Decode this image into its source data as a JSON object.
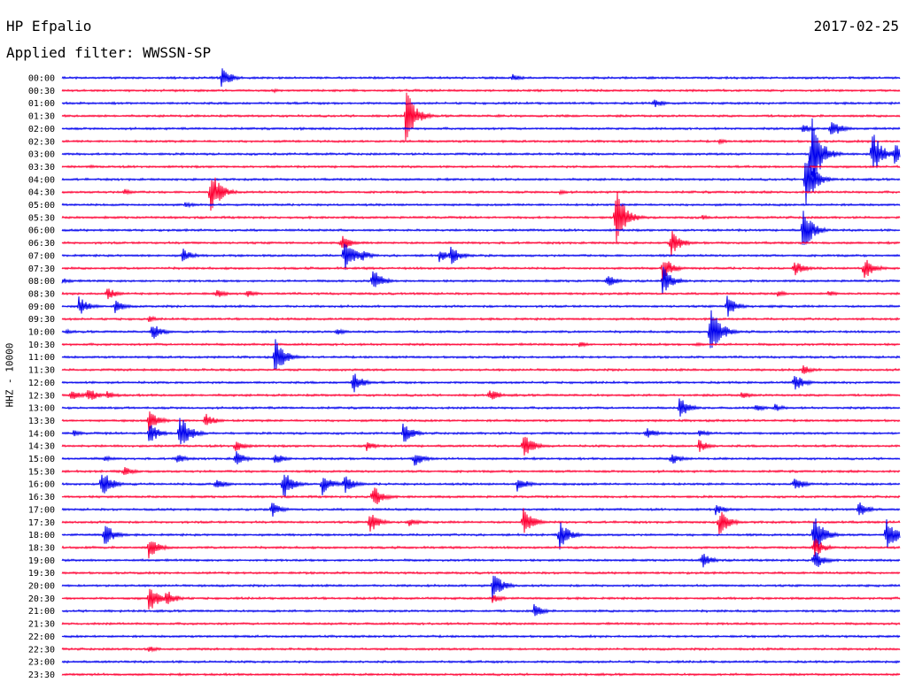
{
  "header": {
    "station": "HP Efpalio",
    "date": "2017-02-25",
    "filter": "Applied filter: WWSSN-SP",
    "ylabel": "HHZ - 10000"
  },
  "colors": {
    "even_rows": "#0000ee",
    "odd_rows": "#ff0033"
  },
  "chart_data": {
    "type": "line",
    "title": "HP Efpalio",
    "ylabel": "HHZ - 10000",
    "row_labels": [
      "00:00",
      "00:30",
      "01:00",
      "01:30",
      "02:00",
      "02:30",
      "03:00",
      "03:30",
      "04:00",
      "04:30",
      "05:00",
      "05:30",
      "06:00",
      "06:30",
      "07:00",
      "07:30",
      "08:00",
      "08:30",
      "09:00",
      "09:30",
      "10:00",
      "10:30",
      "11:00",
      "11:30",
      "12:00",
      "12:30",
      "13:00",
      "13:30",
      "14:00",
      "14:30",
      "15:00",
      "15:30",
      "16:00",
      "16:30",
      "17:00",
      "17:30",
      "18:00",
      "18:30",
      "19:00",
      "19:30",
      "20:00",
      "20:30",
      "21:00",
      "21:30",
      "22:00",
      "22:30",
      "23:00",
      "23:30"
    ],
    "row_duration_minutes": 30,
    "events": [
      {
        "row": 0,
        "minute": 5.7,
        "amp": 14
      },
      {
        "row": 0,
        "minute": 16.1,
        "amp": 5
      },
      {
        "row": 1,
        "minute": 7.6,
        "amp": 2
      },
      {
        "row": 2,
        "minute": 21.2,
        "amp": 6
      },
      {
        "row": 3,
        "minute": 12.3,
        "amp": 34
      },
      {
        "row": 3,
        "minute": 15.6,
        "amp": 2
      },
      {
        "row": 3,
        "minute": 18,
        "amp": 2
      },
      {
        "row": 4,
        "minute": 8.5,
        "amp": 2
      },
      {
        "row": 4,
        "minute": 26.5,
        "amp": 6
      },
      {
        "row": 4,
        "minute": 27.5,
        "amp": 14
      },
      {
        "row": 5,
        "minute": 23.5,
        "amp": 3
      },
      {
        "row": 6,
        "minute": 26.8,
        "amp": 58
      },
      {
        "row": 6,
        "minute": 29,
        "amp": 30
      },
      {
        "row": 6,
        "minute": 29.8,
        "amp": 14
      },
      {
        "row": 7,
        "minute": 1,
        "amp": 2
      },
      {
        "row": 8,
        "minute": 26.6,
        "amp": 38
      },
      {
        "row": 9,
        "minute": 2.2,
        "amp": 4
      },
      {
        "row": 9,
        "minute": 5.3,
        "amp": 30
      },
      {
        "row": 9,
        "minute": 17.8,
        "amp": 3
      },
      {
        "row": 10,
        "minute": 4.4,
        "amp": 4
      },
      {
        "row": 11,
        "minute": 19.8,
        "amp": 40
      },
      {
        "row": 11,
        "minute": 22.9,
        "amp": 3
      },
      {
        "row": 12,
        "minute": 26.5,
        "amp": 30
      },
      {
        "row": 13,
        "minute": 10,
        "amp": 10
      },
      {
        "row": 13,
        "minute": 21.8,
        "amp": 16
      },
      {
        "row": 14,
        "minute": 4.3,
        "amp": 9
      },
      {
        "row": 14,
        "minute": 10.1,
        "amp": 22
      },
      {
        "row": 14,
        "minute": 10.7,
        "amp": 8
      },
      {
        "row": 14,
        "minute": 13.5,
        "amp": 8
      },
      {
        "row": 14,
        "minute": 13.9,
        "amp": 12
      },
      {
        "row": 15,
        "minute": 21.5,
        "amp": 16
      },
      {
        "row": 15,
        "minute": 26.2,
        "amp": 10
      },
      {
        "row": 15,
        "minute": 28.7,
        "amp": 16
      },
      {
        "row": 16,
        "minute": 0,
        "amp": 4
      },
      {
        "row": 16,
        "minute": 11.1,
        "amp": 16
      },
      {
        "row": 16,
        "minute": 19.5,
        "amp": 8
      },
      {
        "row": 16,
        "minute": 21.5,
        "amp": 18
      },
      {
        "row": 17,
        "minute": 1.6,
        "amp": 8
      },
      {
        "row": 17,
        "minute": 5.5,
        "amp": 6
      },
      {
        "row": 17,
        "minute": 6.6,
        "amp": 5
      },
      {
        "row": 17,
        "minute": 25.6,
        "amp": 4
      },
      {
        "row": 17,
        "minute": 27.4,
        "amp": 4
      },
      {
        "row": 18,
        "minute": 0.6,
        "amp": 12
      },
      {
        "row": 18,
        "minute": 1.9,
        "amp": 8
      },
      {
        "row": 18,
        "minute": 23.8,
        "amp": 14
      },
      {
        "row": 18,
        "minute": 25.3,
        "amp": 2
      },
      {
        "row": 19,
        "minute": 3.1,
        "amp": 4
      },
      {
        "row": 20,
        "minute": 0.1,
        "amp": 3
      },
      {
        "row": 20,
        "minute": 3.2,
        "amp": 12
      },
      {
        "row": 20,
        "minute": 9.8,
        "amp": 5
      },
      {
        "row": 20,
        "minute": 23.2,
        "amp": 36
      },
      {
        "row": 21,
        "minute": 18.5,
        "amp": 4
      },
      {
        "row": 21,
        "minute": 22.7,
        "amp": 3
      },
      {
        "row": 22,
        "minute": 7.6,
        "amp": 26
      },
      {
        "row": 23,
        "minute": 26.5,
        "amp": 6
      },
      {
        "row": 24,
        "minute": 10.4,
        "amp": 14
      },
      {
        "row": 24,
        "minute": 26.2,
        "amp": 12
      },
      {
        "row": 25,
        "minute": 0.3,
        "amp": 8
      },
      {
        "row": 25,
        "minute": 0.9,
        "amp": 10
      },
      {
        "row": 25,
        "minute": 1.6,
        "amp": 6
      },
      {
        "row": 25,
        "minute": 15.3,
        "amp": 8
      },
      {
        "row": 25,
        "minute": 24.3,
        "amp": 5
      },
      {
        "row": 26,
        "minute": 22.1,
        "amp": 14
      },
      {
        "row": 26,
        "minute": 24.8,
        "amp": 5
      },
      {
        "row": 26,
        "minute": 25.5,
        "amp": 5
      },
      {
        "row": 27,
        "minute": 3.1,
        "amp": 14
      },
      {
        "row": 27,
        "minute": 5.1,
        "amp": 10
      },
      {
        "row": 28,
        "minute": 0.4,
        "amp": 4
      },
      {
        "row": 28,
        "minute": 3.1,
        "amp": 14
      },
      {
        "row": 28,
        "minute": 4.2,
        "amp": 26
      },
      {
        "row": 28,
        "minute": 12.2,
        "amp": 14
      },
      {
        "row": 28,
        "minute": 20.9,
        "amp": 8
      },
      {
        "row": 28,
        "minute": 22.8,
        "amp": 5
      },
      {
        "row": 29,
        "minute": 6.2,
        "amp": 8
      },
      {
        "row": 29,
        "minute": 10.9,
        "amp": 6
      },
      {
        "row": 29,
        "minute": 16.5,
        "amp": 18
      },
      {
        "row": 29,
        "minute": 22.8,
        "amp": 8
      },
      {
        "row": 30,
        "minute": 1.5,
        "amp": 4
      },
      {
        "row": 30,
        "minute": 4.1,
        "amp": 6
      },
      {
        "row": 30,
        "minute": 6.2,
        "amp": 10
      },
      {
        "row": 30,
        "minute": 7.6,
        "amp": 8
      },
      {
        "row": 30,
        "minute": 12.6,
        "amp": 10
      },
      {
        "row": 30,
        "minute": 21.8,
        "amp": 8
      },
      {
        "row": 31,
        "minute": 2.2,
        "amp": 6
      },
      {
        "row": 32,
        "minute": 1.4,
        "amp": 20
      },
      {
        "row": 32,
        "minute": 5.5,
        "amp": 8
      },
      {
        "row": 32,
        "minute": 7.9,
        "amp": 20
      },
      {
        "row": 32,
        "minute": 9.3,
        "amp": 14
      },
      {
        "row": 32,
        "minute": 10.1,
        "amp": 12
      },
      {
        "row": 32,
        "minute": 16.3,
        "amp": 10
      },
      {
        "row": 32,
        "minute": 26.2,
        "amp": 10
      },
      {
        "row": 33,
        "minute": 11.1,
        "amp": 16
      },
      {
        "row": 34,
        "minute": 7.5,
        "amp": 10
      },
      {
        "row": 34,
        "minute": 23.4,
        "amp": 7
      },
      {
        "row": 34,
        "minute": 28.5,
        "amp": 10
      },
      {
        "row": 35,
        "minute": 11,
        "amp": 14
      },
      {
        "row": 35,
        "minute": 12.4,
        "amp": 6
      },
      {
        "row": 35,
        "minute": 16.5,
        "amp": 18
      },
      {
        "row": 35,
        "minute": 23.5,
        "amp": 18
      },
      {
        "row": 36,
        "minute": 1.5,
        "amp": 16
      },
      {
        "row": 36,
        "minute": 17.8,
        "amp": 18
      },
      {
        "row": 36,
        "minute": 26.9,
        "amp": 30
      },
      {
        "row": 36,
        "minute": 29.5,
        "amp": 24
      },
      {
        "row": 37,
        "minute": 3.1,
        "amp": 14
      },
      {
        "row": 37,
        "minute": 26.9,
        "amp": 14
      },
      {
        "row": 38,
        "minute": 22.9,
        "amp": 10
      },
      {
        "row": 38,
        "minute": 26.9,
        "amp": 14
      },
      {
        "row": 40,
        "minute": 15.4,
        "amp": 18
      },
      {
        "row": 41,
        "minute": 3.1,
        "amp": 18
      },
      {
        "row": 41,
        "minute": 3.7,
        "amp": 12
      },
      {
        "row": 41,
        "minute": 15.4,
        "amp": 6
      },
      {
        "row": 42,
        "minute": 16.9,
        "amp": 8
      },
      {
        "row": 45,
        "minute": 3.1,
        "amp": 4
      }
    ]
  }
}
